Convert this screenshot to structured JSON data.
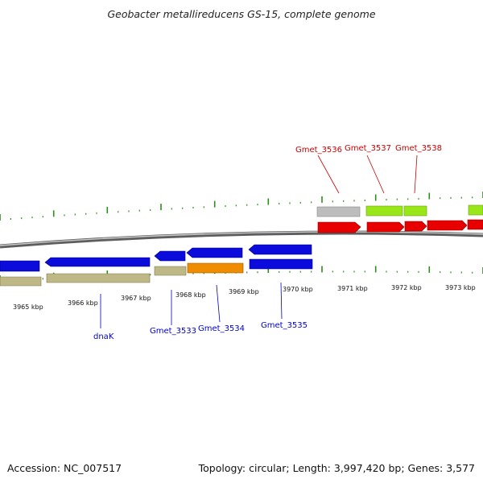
{
  "title": "Geobacter metallireducens GS-15, complete genome",
  "footer": {
    "accession": "Accession: NC_007517",
    "stats": "Topology: circular; Length: 3,997,420 bp; Genes: 3,577"
  },
  "colors": {
    "backbone": "#8a8a8a",
    "tick_green": "#2e8b1e",
    "reverse_gene": "#0b0bdc",
    "forward_gene": "#e80000",
    "rna_gene_lime": "#99e619",
    "pseudo_grey": "#bdbdbd",
    "khaki": "#bdb886",
    "orange": "#f08c00",
    "label_red": "#cc0000",
    "label_blue": "#0000cc"
  },
  "axis_labels": [
    "3965 kbp",
    "3966 kbp",
    "3967 kbp",
    "3968 kbp",
    "3969 kbp",
    "3970 kbp",
    "3971 kbp",
    "3972 kbp",
    "3973 kbp"
  ],
  "forward_labels": [
    "Gmet_3536",
    "Gmet_3537",
    "Gmet_3538"
  ],
  "reverse_labels": [
    "dnaK",
    "Gmet_3533",
    "Gmet_3534",
    "Gmet_3535"
  ]
}
